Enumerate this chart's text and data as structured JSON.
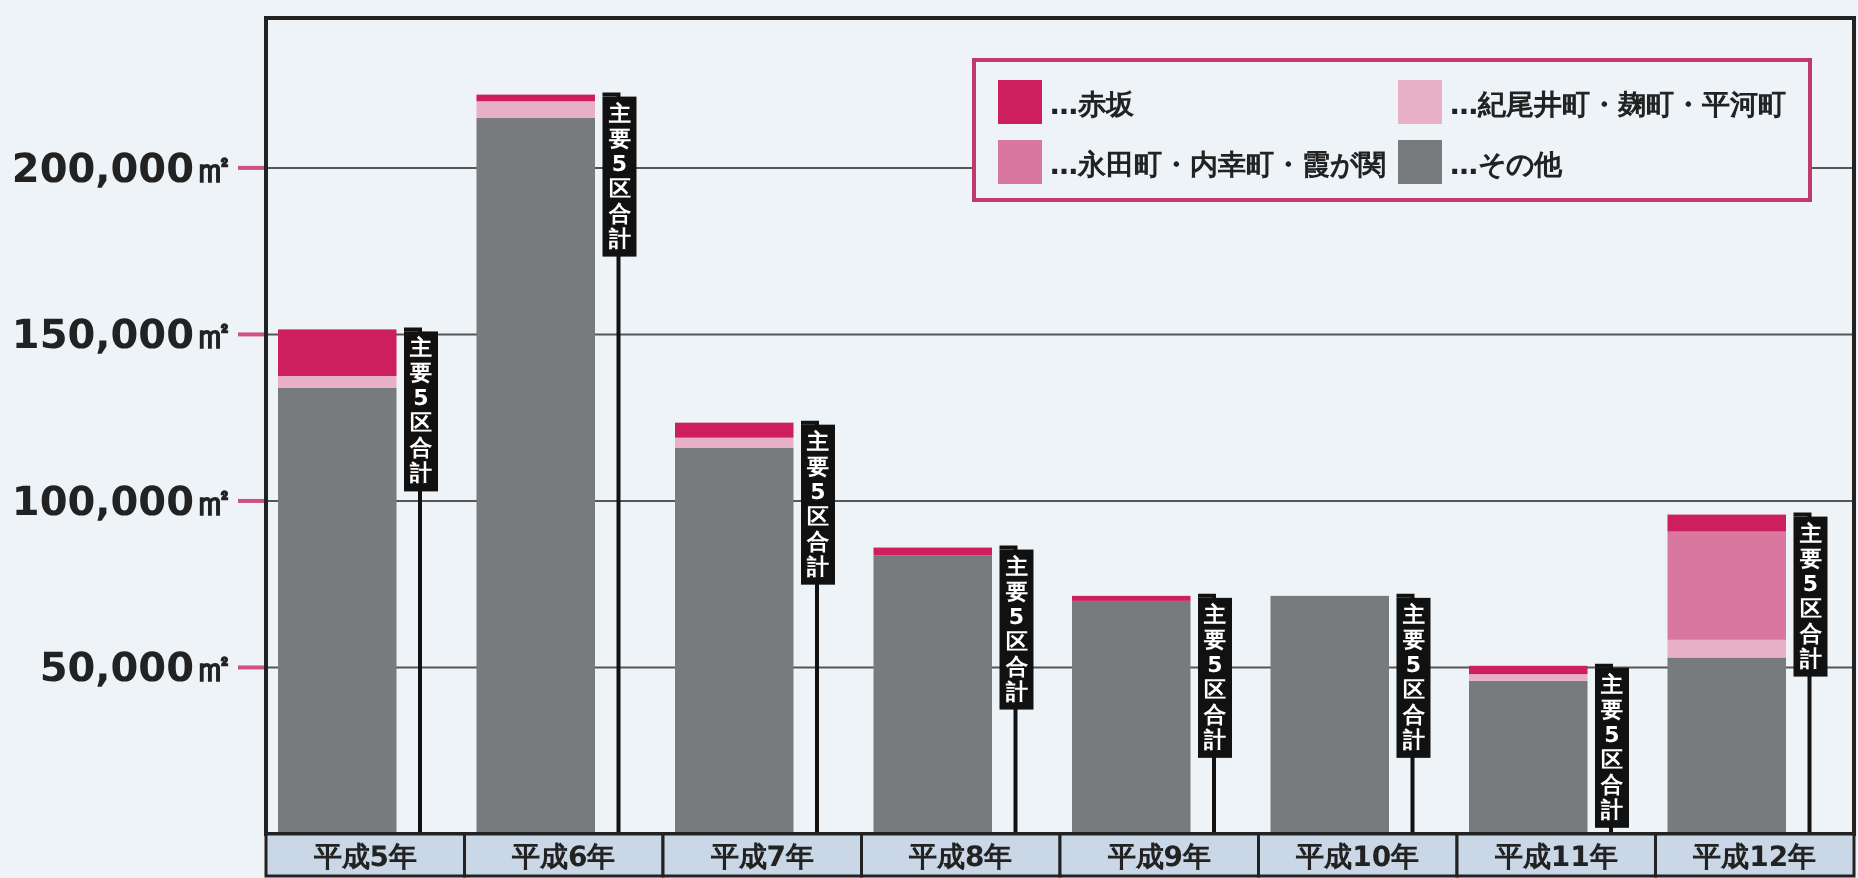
{
  "chart_data": {
    "type": "bar",
    "stacked": true,
    "categories": [
      "平成5年",
      "平成6年",
      "平成7年",
      "平成8年",
      "平成9年",
      "平成10年",
      "平成11年",
      "平成12年"
    ],
    "series": [
      {
        "name": "…その他",
        "color": "#777b7c",
        "values": [
          134000,
          215000,
          116000,
          83700,
          70000,
          71500,
          46000,
          53000
        ]
      },
      {
        "name": "…紀尾井町・麹町・平河町",
        "color": "#e8b0c6",
        "values": [
          3500,
          5000,
          3000,
          0,
          0,
          0,
          2000,
          5300
        ]
      },
      {
        "name": "…永田町・内幸町・霞が関",
        "color": "#d9779f",
        "values": [
          0,
          0,
          0,
          0,
          0,
          0,
          0,
          32500
        ]
      },
      {
        "name": "…赤坂",
        "color": "#cc1f5c",
        "values": [
          14000,
          2000,
          4500,
          2300,
          1500,
          0,
          2500,
          5100
        ]
      }
    ],
    "ylim": [
      0,
      245000
    ],
    "yticks": [
      {
        "value": 50000,
        "label": "50,000㎡"
      },
      {
        "value": 100000,
        "label": "100,000㎡"
      },
      {
        "value": 150000,
        "label": "150,000㎡"
      },
      {
        "value": 200000,
        "label": "200,000㎡"
      }
    ],
    "grid": "y",
    "legend": "top right",
    "annotations": [
      {
        "text": "主要5区合計",
        "x": "平成5年",
        "y": 151500
      },
      {
        "text": "主要5区合計",
        "x": "平成6年",
        "y": 222000
      },
      {
        "text": "主要5区合計",
        "x": "平成7年",
        "y": 123500
      },
      {
        "text": "主要5区合計",
        "x": "平成8年",
        "y": 86000
      },
      {
        "text": "主要5区合計",
        "x": "平成9年",
        "y": 71500
      },
      {
        "text": "主要5区合計",
        "x": "平成10年",
        "y": 71500
      },
      {
        "text": "主要5区合計",
        "x": "平成11年",
        "y": 50500
      },
      {
        "text": "主要5区合計",
        "x": "平成12年",
        "y": 95900
      }
    ]
  }
}
